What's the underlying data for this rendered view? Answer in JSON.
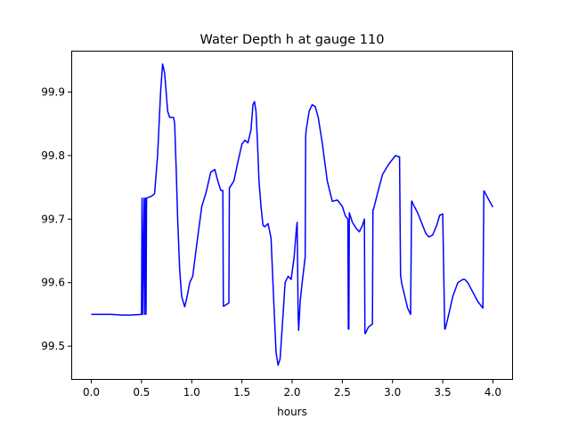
{
  "chart_data": {
    "type": "line",
    "title": "Water Depth h at gauge 110",
    "xlabel": "hours",
    "ylabel": "",
    "xlim": [
      -0.2,
      4.2
    ],
    "ylim": [
      99.447,
      99.965
    ],
    "xticks": [
      0.0,
      0.5,
      1.0,
      1.5,
      2.0,
      2.5,
      3.0,
      3.5,
      4.0
    ],
    "xtick_labels": [
      "0.0",
      "0.5",
      "1.0",
      "1.5",
      "2.0",
      "2.5",
      "3.0",
      "3.5",
      "4.0"
    ],
    "yticks": [
      99.5,
      99.6,
      99.7,
      99.8,
      99.9
    ],
    "ytick_labels": [
      "99.5",
      "99.6",
      "99.7",
      "99.8",
      "99.9"
    ],
    "grid": false,
    "series": [
      {
        "color": "#0000ff",
        "x": [
          0.0,
          0.1,
          0.2,
          0.3,
          0.4,
          0.5,
          0.505,
          0.51,
          0.525,
          0.53,
          0.54,
          0.545,
          0.55,
          0.6,
          0.63,
          0.66,
          0.69,
          0.71,
          0.73,
          0.76,
          0.78,
          0.82,
          0.83,
          0.845,
          0.86,
          0.88,
          0.9,
          0.93,
          0.95,
          0.98,
          1.01,
          1.05,
          1.1,
          1.14,
          1.19,
          1.23,
          1.26,
          1.29,
          1.31,
          1.315,
          1.32,
          1.37,
          1.375,
          1.38,
          1.42,
          1.46,
          1.5,
          1.53,
          1.56,
          1.59,
          1.61,
          1.625,
          1.64,
          1.655,
          1.67,
          1.69,
          1.71,
          1.73,
          1.76,
          1.79,
          1.82,
          1.84,
          1.86,
          1.88,
          1.91,
          1.93,
          1.96,
          1.99,
          2.02,
          2.04,
          2.05,
          2.06,
          2.065,
          2.08,
          2.1,
          2.13,
          2.135,
          2.14,
          2.17,
          2.2,
          2.23,
          2.26,
          2.3,
          2.35,
          2.4,
          2.45,
          2.5,
          2.53,
          2.555,
          2.56,
          2.565,
          2.57,
          2.6,
          2.64,
          2.67,
          2.7,
          2.72,
          2.725,
          2.73,
          2.76,
          2.8,
          2.805,
          2.81,
          2.85,
          2.9,
          2.96,
          3.03,
          3.06,
          3.07,
          3.08,
          3.085,
          3.09,
          3.12,
          3.15,
          3.18,
          3.19,
          3.195,
          3.2,
          3.25,
          3.3,
          3.33,
          3.36,
          3.4,
          3.44,
          3.47,
          3.5,
          3.52,
          3.525,
          3.53,
          3.56,
          3.6,
          3.65,
          3.7,
          3.72,
          3.75,
          3.8,
          3.85,
          3.9,
          3.91,
          3.915,
          3.92,
          3.96,
          4.0
        ],
        "y": [
          99.55,
          99.55,
          99.55,
          99.549,
          99.549,
          99.55,
          99.733,
          99.55,
          99.733,
          99.55,
          99.733,
          99.55,
          99.733,
          99.736,
          99.74,
          99.8,
          99.9,
          99.944,
          99.93,
          99.87,
          99.86,
          99.86,
          99.85,
          99.78,
          99.7,
          99.62,
          99.578,
          99.562,
          99.575,
          99.6,
          99.61,
          99.66,
          99.72,
          99.74,
          99.774,
          99.778,
          99.76,
          99.745,
          99.745,
          99.563,
          99.563,
          99.568,
          99.75,
          99.75,
          99.76,
          99.79,
          99.818,
          99.824,
          99.82,
          99.84,
          99.88,
          99.885,
          99.87,
          99.82,
          99.76,
          99.72,
          99.69,
          99.688,
          99.693,
          99.67,
          99.56,
          99.49,
          99.47,
          99.48,
          99.55,
          99.6,
          99.61,
          99.605,
          99.64,
          99.68,
          99.695,
          99.55,
          99.525,
          99.57,
          99.6,
          99.64,
          99.83,
          99.84,
          99.87,
          99.88,
          99.877,
          99.86,
          99.82,
          99.76,
          99.728,
          99.73,
          99.72,
          99.705,
          99.7,
          99.527,
          99.527,
          99.71,
          99.695,
          99.685,
          99.68,
          99.69,
          99.7,
          99.52,
          99.52,
          99.53,
          99.535,
          99.715,
          99.715,
          99.74,
          99.77,
          99.786,
          99.8,
          99.798,
          99.798,
          99.61,
          99.607,
          99.6,
          99.58,
          99.56,
          99.55,
          99.728,
          99.728,
          99.725,
          99.71,
          99.69,
          99.678,
          99.672,
          99.675,
          99.69,
          99.706,
          99.708,
          99.527,
          99.527,
          99.53,
          99.55,
          99.578,
          99.6,
          99.605,
          99.605,
          99.6,
          99.585,
          99.57,
          99.56,
          99.744,
          99.744,
          99.742,
          99.73,
          99.719
        ]
      }
    ]
  }
}
